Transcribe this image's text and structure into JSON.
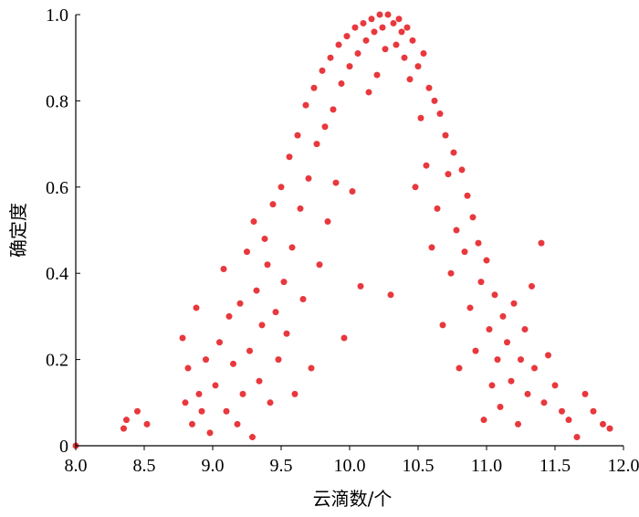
{
  "chart_data": {
    "type": "scatter",
    "xlabel": "云滴数/个",
    "ylabel": "确定度",
    "xlim": [
      8.0,
      12.0
    ],
    "ylim": [
      0,
      1.0
    ],
    "x_ticks": [
      "8.0",
      "8.5",
      "9.0",
      "9.5",
      "10.0",
      "10.5",
      "11.0",
      "11.5",
      "12.0"
    ],
    "y_ticks": [
      "0",
      "0.2",
      "0.4",
      "0.6",
      "0.8",
      "1.0"
    ],
    "grid": false,
    "marker_color": "#e8383d",
    "series": [
      {
        "points": [
          [
            8.0,
            0.0
          ],
          [
            8.35,
            0.04
          ],
          [
            8.37,
            0.06
          ],
          [
            8.45,
            0.08
          ],
          [
            8.52,
            0.05
          ],
          [
            8.78,
            0.25
          ],
          [
            8.8,
            0.1
          ],
          [
            8.82,
            0.18
          ],
          [
            8.85,
            0.05
          ],
          [
            8.88,
            0.32
          ],
          [
            8.9,
            0.12
          ],
          [
            8.92,
            0.08
          ],
          [
            8.95,
            0.2
          ],
          [
            8.98,
            0.03
          ],
          [
            9.02,
            0.14
          ],
          [
            9.05,
            0.24
          ],
          [
            9.08,
            0.41
          ],
          [
            9.1,
            0.08
          ],
          [
            9.12,
            0.3
          ],
          [
            9.15,
            0.19
          ],
          [
            9.18,
            0.05
          ],
          [
            9.2,
            0.33
          ],
          [
            9.22,
            0.12
          ],
          [
            9.25,
            0.45
          ],
          [
            9.27,
            0.22
          ],
          [
            9.29,
            0.02
          ],
          [
            9.3,
            0.52
          ],
          [
            9.32,
            0.36
          ],
          [
            9.34,
            0.15
          ],
          [
            9.36,
            0.28
          ],
          [
            9.38,
            0.48
          ],
          [
            9.4,
            0.42
          ],
          [
            9.42,
            0.1
          ],
          [
            9.44,
            0.56
          ],
          [
            9.46,
            0.31
          ],
          [
            9.48,
            0.2
          ],
          [
            9.5,
            0.6
          ],
          [
            9.52,
            0.38
          ],
          [
            9.54,
            0.26
          ],
          [
            9.56,
            0.67
          ],
          [
            9.58,
            0.46
          ],
          [
            9.6,
            0.12
          ],
          [
            9.62,
            0.72
          ],
          [
            9.64,
            0.55
          ],
          [
            9.66,
            0.34
          ],
          [
            9.68,
            0.79
          ],
          [
            9.7,
            0.62
          ],
          [
            9.72,
            0.18
          ],
          [
            9.74,
            0.83
          ],
          [
            9.76,
            0.7
          ],
          [
            9.78,
            0.42
          ],
          [
            9.8,
            0.87
          ],
          [
            9.82,
            0.74
          ],
          [
            9.84,
            0.52
          ],
          [
            9.86,
            0.9
          ],
          [
            9.88,
            0.78
          ],
          [
            9.9,
            0.61
          ],
          [
            9.92,
            0.93
          ],
          [
            9.94,
            0.84
          ],
          [
            9.96,
            0.25
          ],
          [
            9.98,
            0.95
          ],
          [
            10.0,
            0.88
          ],
          [
            10.02,
            0.59
          ],
          [
            10.04,
            0.97
          ],
          [
            10.06,
            0.91
          ],
          [
            10.08,
            0.37
          ],
          [
            10.1,
            0.98
          ],
          [
            10.12,
            0.94
          ],
          [
            10.14,
            0.82
          ],
          [
            10.16,
            0.99
          ],
          [
            10.18,
            0.96
          ],
          [
            10.2,
            0.86
          ],
          [
            10.22,
            1.0
          ],
          [
            10.24,
            0.97
          ],
          [
            10.26,
            0.92
          ],
          [
            10.28,
            1.0
          ],
          [
            10.3,
            0.35
          ],
          [
            10.32,
            0.98
          ],
          [
            10.34,
            0.93
          ],
          [
            10.36,
            0.99
          ],
          [
            10.38,
            0.96
          ],
          [
            10.4,
            0.9
          ],
          [
            10.42,
            0.97
          ],
          [
            10.44,
            0.85
          ],
          [
            10.46,
            0.94
          ],
          [
            10.48,
            0.6
          ],
          [
            10.5,
            0.88
          ],
          [
            10.52,
            0.76
          ],
          [
            10.54,
            0.91
          ],
          [
            10.56,
            0.65
          ],
          [
            10.58,
            0.83
          ],
          [
            10.6,
            0.46
          ],
          [
            10.62,
            0.8
          ],
          [
            10.64,
            0.55
          ],
          [
            10.66,
            0.77
          ],
          [
            10.68,
            0.28
          ],
          [
            10.7,
            0.72
          ],
          [
            10.72,
            0.63
          ],
          [
            10.74,
            0.4
          ],
          [
            10.76,
            0.68
          ],
          [
            10.78,
            0.5
          ],
          [
            10.8,
            0.18
          ],
          [
            10.82,
            0.64
          ],
          [
            10.84,
            0.45
          ],
          [
            10.86,
            0.58
          ],
          [
            10.88,
            0.32
          ],
          [
            10.9,
            0.53
          ],
          [
            10.92,
            0.22
          ],
          [
            10.94,
            0.47
          ],
          [
            10.96,
            0.38
          ],
          [
            10.98,
            0.06
          ],
          [
            11.0,
            0.43
          ],
          [
            11.02,
            0.27
          ],
          [
            11.04,
            0.14
          ],
          [
            11.06,
            0.35
          ],
          [
            11.08,
            0.2
          ],
          [
            11.1,
            0.09
          ],
          [
            11.12,
            0.3
          ],
          [
            11.15,
            0.24
          ],
          [
            11.18,
            0.15
          ],
          [
            11.2,
            0.33
          ],
          [
            11.23,
            0.05
          ],
          [
            11.25,
            0.2
          ],
          [
            11.28,
            0.27
          ],
          [
            11.3,
            0.12
          ],
          [
            11.33,
            0.37
          ],
          [
            11.35,
            0.18
          ],
          [
            11.4,
            0.47
          ],
          [
            11.42,
            0.1
          ],
          [
            11.45,
            0.21
          ],
          [
            11.5,
            0.14
          ],
          [
            11.55,
            0.08
          ],
          [
            11.6,
            0.06
          ],
          [
            11.66,
            0.02
          ],
          [
            11.72,
            0.12
          ],
          [
            11.78,
            0.08
          ],
          [
            11.85,
            0.05
          ],
          [
            11.9,
            0.04
          ]
        ]
      }
    ]
  }
}
